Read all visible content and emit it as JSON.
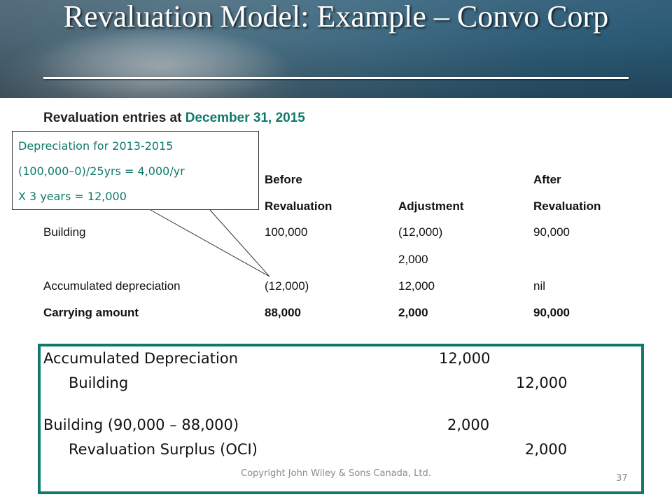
{
  "slide": {
    "title": "Revaluation Model: Example – Convo Corp",
    "subtitle_prefix": "Revaluation entries at ",
    "subtitle_date": "December 31, 2015"
  },
  "callout": {
    "lines": [
      "Depreciation for 2013-2015",
      "(100,000–0)/25yrs = 4,000/yr",
      "X 3 years = 12,000"
    ]
  },
  "table": {
    "headers": {
      "before_line1": "Before",
      "before_line2": "Revaluation",
      "adjustment": "Adjustment",
      "after_line1": "After",
      "after_line2": "Revaluation"
    },
    "rows": [
      {
        "label": "Building",
        "before": "100,000",
        "adjustment": "(12,000)",
        "after": "90,000"
      },
      {
        "label": "",
        "before": "",
        "adjustment": "2,000",
        "after": ""
      },
      {
        "label": "Accumulated depreciation",
        "before": "(12,000)",
        "adjustment": "12,000",
        "after": "nil"
      },
      {
        "label": "Carrying amount",
        "before": "88,000",
        "adjustment": "2,000",
        "after": "90,000"
      }
    ]
  },
  "journal": {
    "entries": [
      {
        "debit_account": "Accumulated Depreciation",
        "debit_amount": "12,000",
        "credit_account": "Building",
        "credit_amount": "12,000"
      },
      {
        "debit_account": "Building (90,000 – 88,000)",
        "debit_amount": "2,000",
        "credit_account": "Revaluation Surplus (OCI)",
        "credit_amount": "2,000"
      }
    ]
  },
  "footer": {
    "copyright": "Copyright John Wiley & Sons Canada, Ltd.",
    "page_number": "37"
  },
  "colors": {
    "accent": "#0f7a6b"
  }
}
